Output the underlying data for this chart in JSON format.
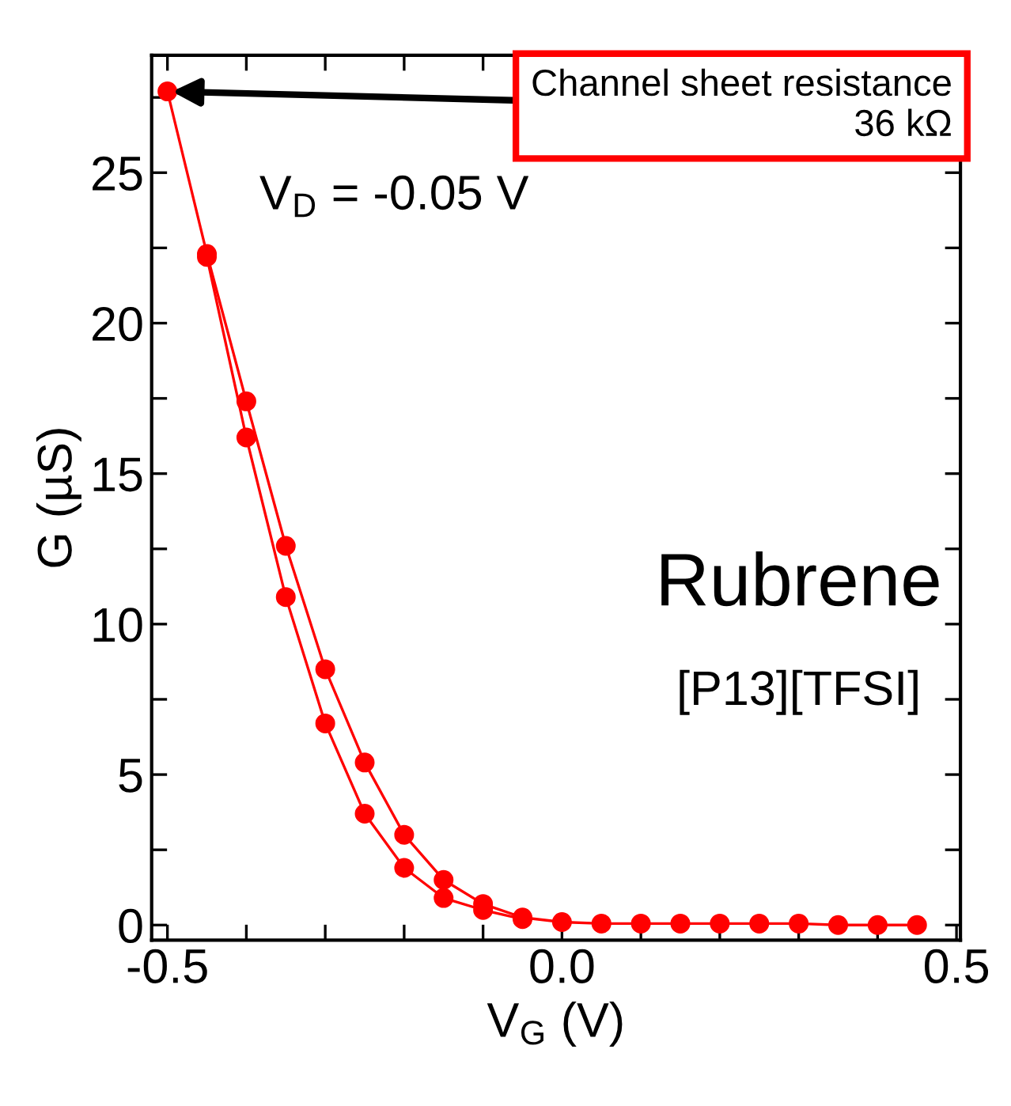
{
  "chart_data": {
    "type": "line",
    "xlabel": "V$_{G}$ (V)",
    "ylabel": "G (µS)",
    "series": [
      {
        "color": "#ff0000",
        "x": [
          -0.5,
          -0.45,
          -0.4,
          -0.35,
          -0.3,
          -0.25,
          -0.2,
          -0.15,
          -0.1,
          -0.05,
          0.0,
          0.05,
          0.1,
          0.15,
          0.2,
          0.25,
          0.3,
          0.35,
          0.4,
          0.45
        ],
        "values": [
          27.7,
          22.3,
          17.4,
          12.6,
          8.5,
          5.4,
          3.0,
          1.5,
          0.7,
          0.25,
          0.1,
          0.05,
          0.05,
          0.05,
          0.05,
          0.05,
          0.05,
          0.0,
          0.0,
          0.0
        ]
      },
      {
        "color": "#ff0000",
        "x": [
          -0.45,
          -0.4,
          -0.35,
          -0.3,
          -0.25,
          -0.2,
          -0.15,
          -0.1,
          -0.05
        ],
        "values": [
          22.2,
          16.2,
          10.9,
          6.7,
          3.7,
          1.9,
          0.9,
          0.5,
          0.2
        ]
      }
    ],
    "xlim": [
      -0.52,
      0.505
    ],
    "ylim": [
      -0.5,
      28.9
    ],
    "xticks": [
      {
        "value": -0.5,
        "label": "-0.5"
      },
      {
        "value": -0.4,
        "label": null
      },
      {
        "value": -0.3,
        "label": null
      },
      {
        "value": -0.2,
        "label": null
      },
      {
        "value": -0.1,
        "label": null
      },
      {
        "value": 0.0,
        "label": "0.0"
      },
      {
        "value": 0.1,
        "label": null
      },
      {
        "value": 0.2,
        "label": null
      },
      {
        "value": 0.3,
        "label": null
      },
      {
        "value": 0.4,
        "label": null
      },
      {
        "value": 0.5,
        "label": "0.5"
      }
    ],
    "yticks": [
      0,
      {
        "value": 2.5,
        "label": null
      },
      5,
      {
        "value": 7.5,
        "label": null
      },
      10,
      {
        "value": 12.5,
        "label": null
      },
      15,
      {
        "value": 17.5,
        "label": null
      },
      20,
      {
        "value": 22.5,
        "label": null
      },
      25,
      {
        "value": 27.5,
        "label": null
      }
    ],
    "marker": "circle",
    "line_style": "solid",
    "grid": false,
    "legend": false,
    "annotations": [
      {
        "text": "Channel sheet resistance\n36 kΩ",
        "x": -0.5,
        "y": 27.7
      },
      "V$_{D}$ = -0.05 V",
      "Rubrene",
      "[P13][TFSI]"
    ]
  }
}
